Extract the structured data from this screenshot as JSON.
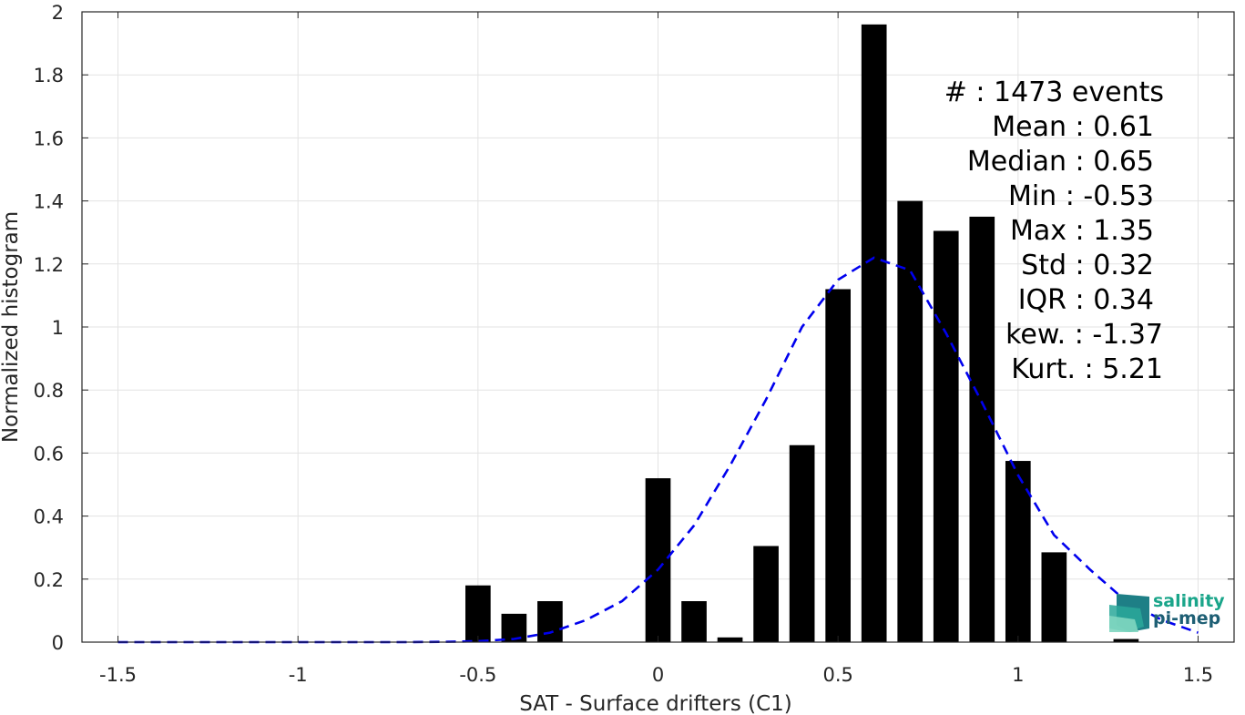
{
  "chart_data": {
    "type": "bar",
    "xlabel": "SAT - Surface drifters (C1)",
    "ylabel": "Normalized histogram",
    "xlim": [
      -1.6,
      1.6
    ],
    "ylim": [
      0,
      2
    ],
    "xticks": [
      "-1.5",
      "-1",
      "-0.5",
      "0",
      "0.5",
      "1",
      "1.5"
    ],
    "yticks": [
      "0",
      "0.2",
      "0.4",
      "0.6",
      "0.8",
      "1",
      "1.2",
      "1.4",
      "1.6",
      "1.8",
      "2"
    ],
    "grid": true,
    "bar_width": 0.07,
    "bar_color": "#000000",
    "bars": {
      "x": [
        -0.5,
        -0.4,
        -0.3,
        0.0,
        0.1,
        0.2,
        0.3,
        0.4,
        0.5,
        0.6,
        0.7,
        0.8,
        0.9,
        1.0,
        1.1,
        1.3
      ],
      "values": [
        0.18,
        0.09,
        0.13,
        0.52,
        0.13,
        0.015,
        0.305,
        0.625,
        1.12,
        1.96,
        1.4,
        1.305,
        1.35,
        0.575,
        0.285,
        0.01
      ]
    },
    "fit_curve": {
      "style": "dashed",
      "color": "#0000ee",
      "x": [
        -1.5,
        -1.4,
        -1.3,
        -1.2,
        -1.1,
        -1.0,
        -0.9,
        -0.8,
        -0.7,
        -0.6,
        -0.5,
        -0.4,
        -0.3,
        -0.2,
        -0.1,
        0.0,
        0.1,
        0.2,
        0.3,
        0.4,
        0.5,
        0.6,
        0.7,
        0.8,
        0.9,
        1.0,
        1.1,
        1.2,
        1.3,
        1.4,
        1.5
      ],
      "values": [
        0.0,
        0.0,
        0.0,
        0.0,
        0.0,
        0.0,
        0.0,
        0.0,
        0.0,
        0.001,
        0.003,
        0.01,
        0.03,
        0.07,
        0.13,
        0.23,
        0.37,
        0.56,
        0.77,
        1.0,
        1.15,
        1.22,
        1.18,
        0.98,
        0.76,
        0.53,
        0.34,
        0.23,
        0.13,
        0.07,
        0.03
      ]
    },
    "stats": [
      {
        "label": "#  : 1473 events"
      },
      {
        "label": "Mean : 0.61"
      },
      {
        "label": "Median : 0.65"
      },
      {
        "label": "Min : -0.53"
      },
      {
        "label": "Max : 1.35"
      },
      {
        "label": "Std : 0.32"
      },
      {
        "label": "IQR : 0.34"
      },
      {
        "label": "kew. : -1.37"
      },
      {
        "label": "Kurt. : 5.21"
      }
    ]
  },
  "logo": {
    "line1": "salinity",
    "line2": "pi-mep",
    "color1": "#1aa58a",
    "color2": "#1e5f74"
  }
}
